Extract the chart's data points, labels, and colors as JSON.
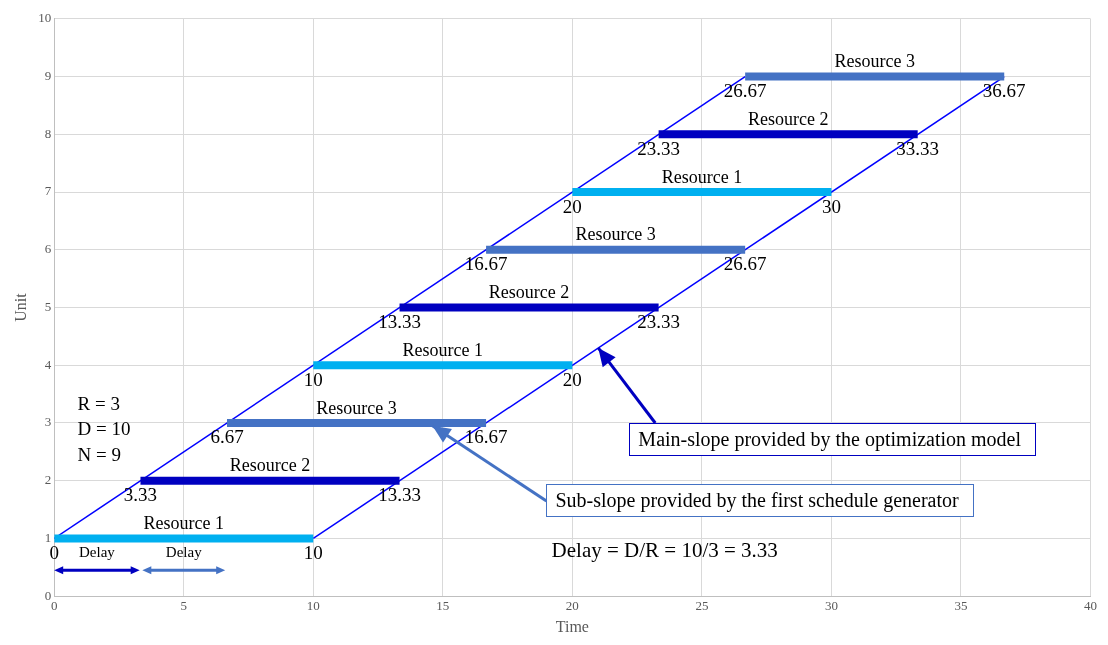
{
  "chart_data": {
    "type": "line",
    "xlabel": "Time",
    "ylabel": "Unit",
    "xlim": [
      0,
      40
    ],
    "ylim": [
      0,
      10
    ],
    "xticks": [
      0,
      5,
      10,
      15,
      20,
      25,
      30,
      35,
      40
    ],
    "yticks": [
      0,
      1,
      2,
      3,
      4,
      5,
      6,
      7,
      8,
      9,
      10
    ],
    "grid": true,
    "series": [
      {
        "name": "Resource 1",
        "color": "#00b0f0",
        "x": [
          0,
          10
        ],
        "values": [
          1,
          1
        ]
      },
      {
        "name": "Resource 2",
        "color": "#0000c0",
        "x": [
          3.33,
          13.33
        ],
        "values": [
          2,
          2
        ]
      },
      {
        "name": "Resource 3",
        "color": "#4472c4",
        "x": [
          6.67,
          16.67
        ],
        "values": [
          3,
          3
        ]
      },
      {
        "name": "Resource 1",
        "color": "#00b0f0",
        "x": [
          10,
          20
        ],
        "values": [
          4,
          4
        ]
      },
      {
        "name": "Resource 2",
        "color": "#0000c0",
        "x": [
          13.33,
          23.33
        ],
        "values": [
          5,
          5
        ]
      },
      {
        "name": "Resource 3",
        "color": "#4472c4",
        "x": [
          16.67,
          26.67
        ],
        "values": [
          6,
          6
        ]
      },
      {
        "name": "Resource 1",
        "color": "#00b0f0",
        "x": [
          20,
          30
        ],
        "values": [
          7,
          7
        ]
      },
      {
        "name": "Resource 2",
        "color": "#0000c0",
        "x": [
          23.33,
          33.33
        ],
        "values": [
          8,
          8
        ]
      },
      {
        "name": "Resource 3",
        "color": "#4472c4",
        "x": [
          26.67,
          36.67
        ],
        "values": [
          9,
          9
        ]
      },
      {
        "color": "#0000ff",
        "x": [
          0,
          26.67
        ],
        "values": [
          1,
          9
        ]
      },
      {
        "color": "#0000ff",
        "x": [
          10,
          36.67
        ],
        "values": [
          1,
          9
        ]
      }
    ],
    "annotations": [
      {
        "text": "0",
        "x": 0,
        "y": 1
      },
      {
        "text": "10",
        "x": 10,
        "y": 1
      },
      {
        "text": "3.33",
        "x": 3.33,
        "y": 2
      },
      {
        "text": "13.33",
        "x": 13.33,
        "y": 2
      },
      {
        "text": "6.67",
        "x": 6.67,
        "y": 3
      },
      {
        "text": "16.67",
        "x": 16.67,
        "y": 3
      },
      {
        "text": "10",
        "x": 10,
        "y": 4
      },
      {
        "text": "20",
        "x": 20,
        "y": 4
      },
      {
        "text": "13.33",
        "x": 13.33,
        "y": 5
      },
      {
        "text": "23.33",
        "x": 23.33,
        "y": 5
      },
      {
        "text": "16.67",
        "x": 16.67,
        "y": 6
      },
      {
        "text": "26.67",
        "x": 26.67,
        "y": 6
      },
      {
        "text": "20",
        "x": 20,
        "y": 7
      },
      {
        "text": "30",
        "x": 30,
        "y": 7
      },
      {
        "text": "23.33",
        "x": 23.33,
        "y": 8
      },
      {
        "text": "33.33",
        "x": 33.33,
        "y": 8
      },
      {
        "text": "26.67",
        "x": 26.67,
        "y": 9
      },
      {
        "text": "36.67",
        "x": 36.67,
        "y": 9
      },
      "R = 3",
      "D = 10",
      "N = 9",
      {
        "text": "Main-slope provided by the optimization model",
        "x": 21,
        "y": 4.3
      },
      {
        "text": "Sub-slope provided by the first schedule generator",
        "x": 14.6,
        "y": 2.95
      },
      "Delay = D/R = 10/3 = 3.33",
      "Delay",
      "Delay"
    ]
  }
}
